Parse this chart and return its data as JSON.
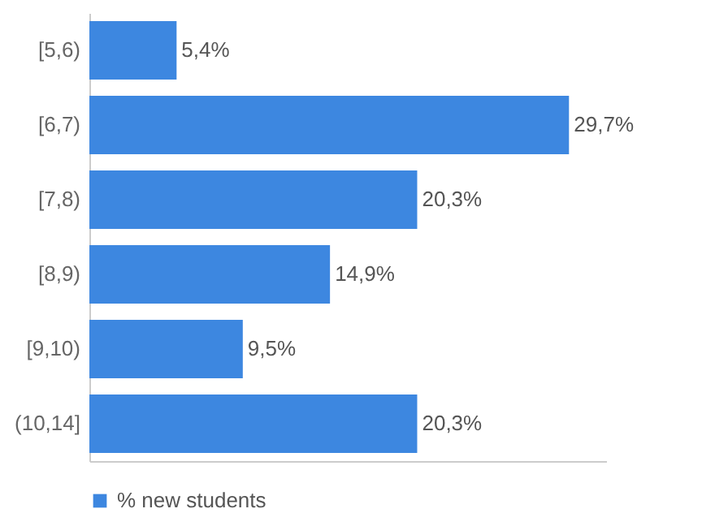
{
  "chart_data": {
    "type": "bar",
    "orientation": "horizontal",
    "categories": [
      "[5,6)",
      "[6,7)",
      "[7,8)",
      "[8,9)",
      "[9,10)",
      "(10,14]"
    ],
    "series": [
      {
        "name": "% new students",
        "color": "#3d87e0",
        "values": [
          5.4,
          29.7,
          20.3,
          14.9,
          9.5,
          20.3
        ],
        "value_labels": [
          "5,4%",
          "29,7%",
          "20,3%",
          "14,9%",
          "9,5%",
          "20,3%"
        ]
      }
    ],
    "xlim": [
      0,
      32
    ],
    "legend": "bottom",
    "tick_labels": "y"
  }
}
